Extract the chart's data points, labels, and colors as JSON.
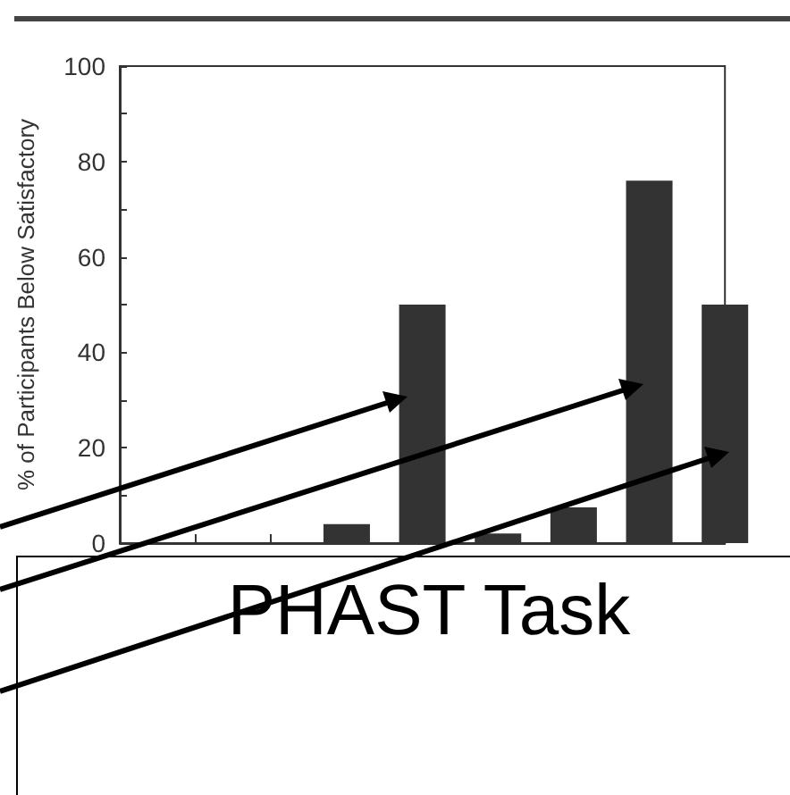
{
  "chart_data": {
    "type": "bar",
    "ylabel": "% of Participants Below Satisfactory",
    "categories": [
      null,
      null,
      null,
      null,
      null,
      null,
      null,
      null,
      null
    ],
    "values": [
      null,
      0,
      0,
      4,
      50,
      2,
      7.5,
      76,
      50
    ],
    "color": "#333333",
    "ylim": [
      0,
      100
    ],
    "yticks": [
      0,
      {
        "value": 10,
        "label": null
      },
      20,
      {
        "value": 30,
        "label": null
      },
      40,
      {
        "value": 50,
        "label": null
      },
      60,
      {
        "value": 70,
        "label": null
      },
      80,
      {
        "value": 90,
        "label": null
      },
      100
    ],
    "grid": false,
    "annotations": [
      "PHAST Task"
    ]
  }
}
